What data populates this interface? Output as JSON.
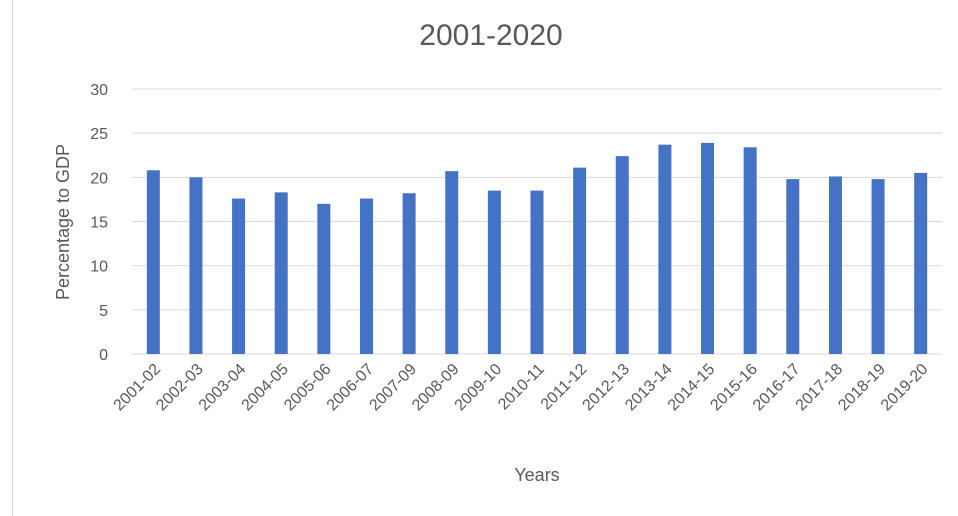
{
  "chart_data": {
    "type": "bar",
    "title": "2001-2020",
    "xlabel": "Years",
    "ylabel": "Percentage to GDP",
    "ylim": [
      0,
      30
    ],
    "yticks": [
      0,
      5,
      10,
      15,
      20,
      25,
      30
    ],
    "grid": true,
    "bar_color": "#4472C4",
    "categories": [
      "2001-02",
      "2002-03",
      "2003-04",
      "2004-05",
      "2005-06",
      "2006-07",
      "2007-09",
      "2008-09",
      "2009-10",
      "2010-11",
      "2011-12",
      "2012-13",
      "2013-14",
      "2014-15",
      "2015-16",
      "2016-17",
      "2017-18",
      "2018-19",
      "2019-20"
    ],
    "values": [
      20.8,
      20.0,
      17.6,
      18.3,
      17.0,
      17.6,
      18.2,
      20.7,
      18.5,
      18.5,
      21.1,
      22.4,
      23.7,
      23.9,
      23.4,
      19.8,
      20.1,
      19.8,
      20.5
    ]
  }
}
